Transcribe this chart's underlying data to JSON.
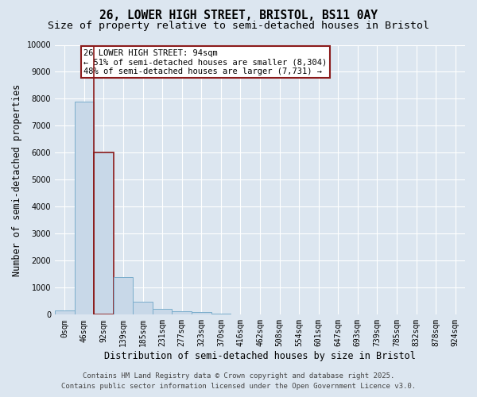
{
  "title_line1": "26, LOWER HIGH STREET, BRISTOL, BS11 0AY",
  "title_line2": "Size of property relative to semi-detached houses in Bristol",
  "xlabel": "Distribution of semi-detached houses by size in Bristol",
  "ylabel": "Number of semi-detached properties",
  "bin_labels": [
    "0sqm",
    "46sqm",
    "92sqm",
    "139sqm",
    "185sqm",
    "231sqm",
    "277sqm",
    "323sqm",
    "370sqm",
    "416sqm",
    "462sqm",
    "508sqm",
    "554sqm",
    "601sqm",
    "647sqm",
    "693sqm",
    "739sqm",
    "785sqm",
    "832sqm",
    "878sqm",
    "924sqm"
  ],
  "bar_values": [
    150,
    7900,
    6000,
    1400,
    480,
    230,
    130,
    90,
    50,
    0,
    0,
    0,
    0,
    0,
    0,
    0,
    0,
    0,
    0,
    0,
    0
  ],
  "bar_color": "#c8d8e8",
  "bar_edge_color": "#7aadcc",
  "highlight_bar_index": 2,
  "vline_color": "#8b1a1a",
  "annotation_text_line1": "26 LOWER HIGH STREET: 94sqm",
  "annotation_text_line2": "← 51% of semi-detached houses are smaller (8,304)",
  "annotation_text_line3": "48% of semi-detached houses are larger (7,731) →",
  "annotation_box_color": "#ffffff",
  "annotation_edge_color": "#8b1a1a",
  "ylim": [
    0,
    10000
  ],
  "yticks": [
    0,
    1000,
    2000,
    3000,
    4000,
    5000,
    6000,
    7000,
    8000,
    9000,
    10000
  ],
  "background_color": "#dce6f0",
  "plot_bg_color": "#dce6f0",
  "grid_color": "#ffffff",
  "footer_line1": "Contains HM Land Registry data © Crown copyright and database right 2025.",
  "footer_line2": "Contains public sector information licensed under the Open Government Licence v3.0.",
  "title_fontsize": 10.5,
  "subtitle_fontsize": 9.5,
  "axis_label_fontsize": 8.5,
  "tick_fontsize": 7,
  "annotation_fontsize": 7.5,
  "footer_fontsize": 6.5
}
